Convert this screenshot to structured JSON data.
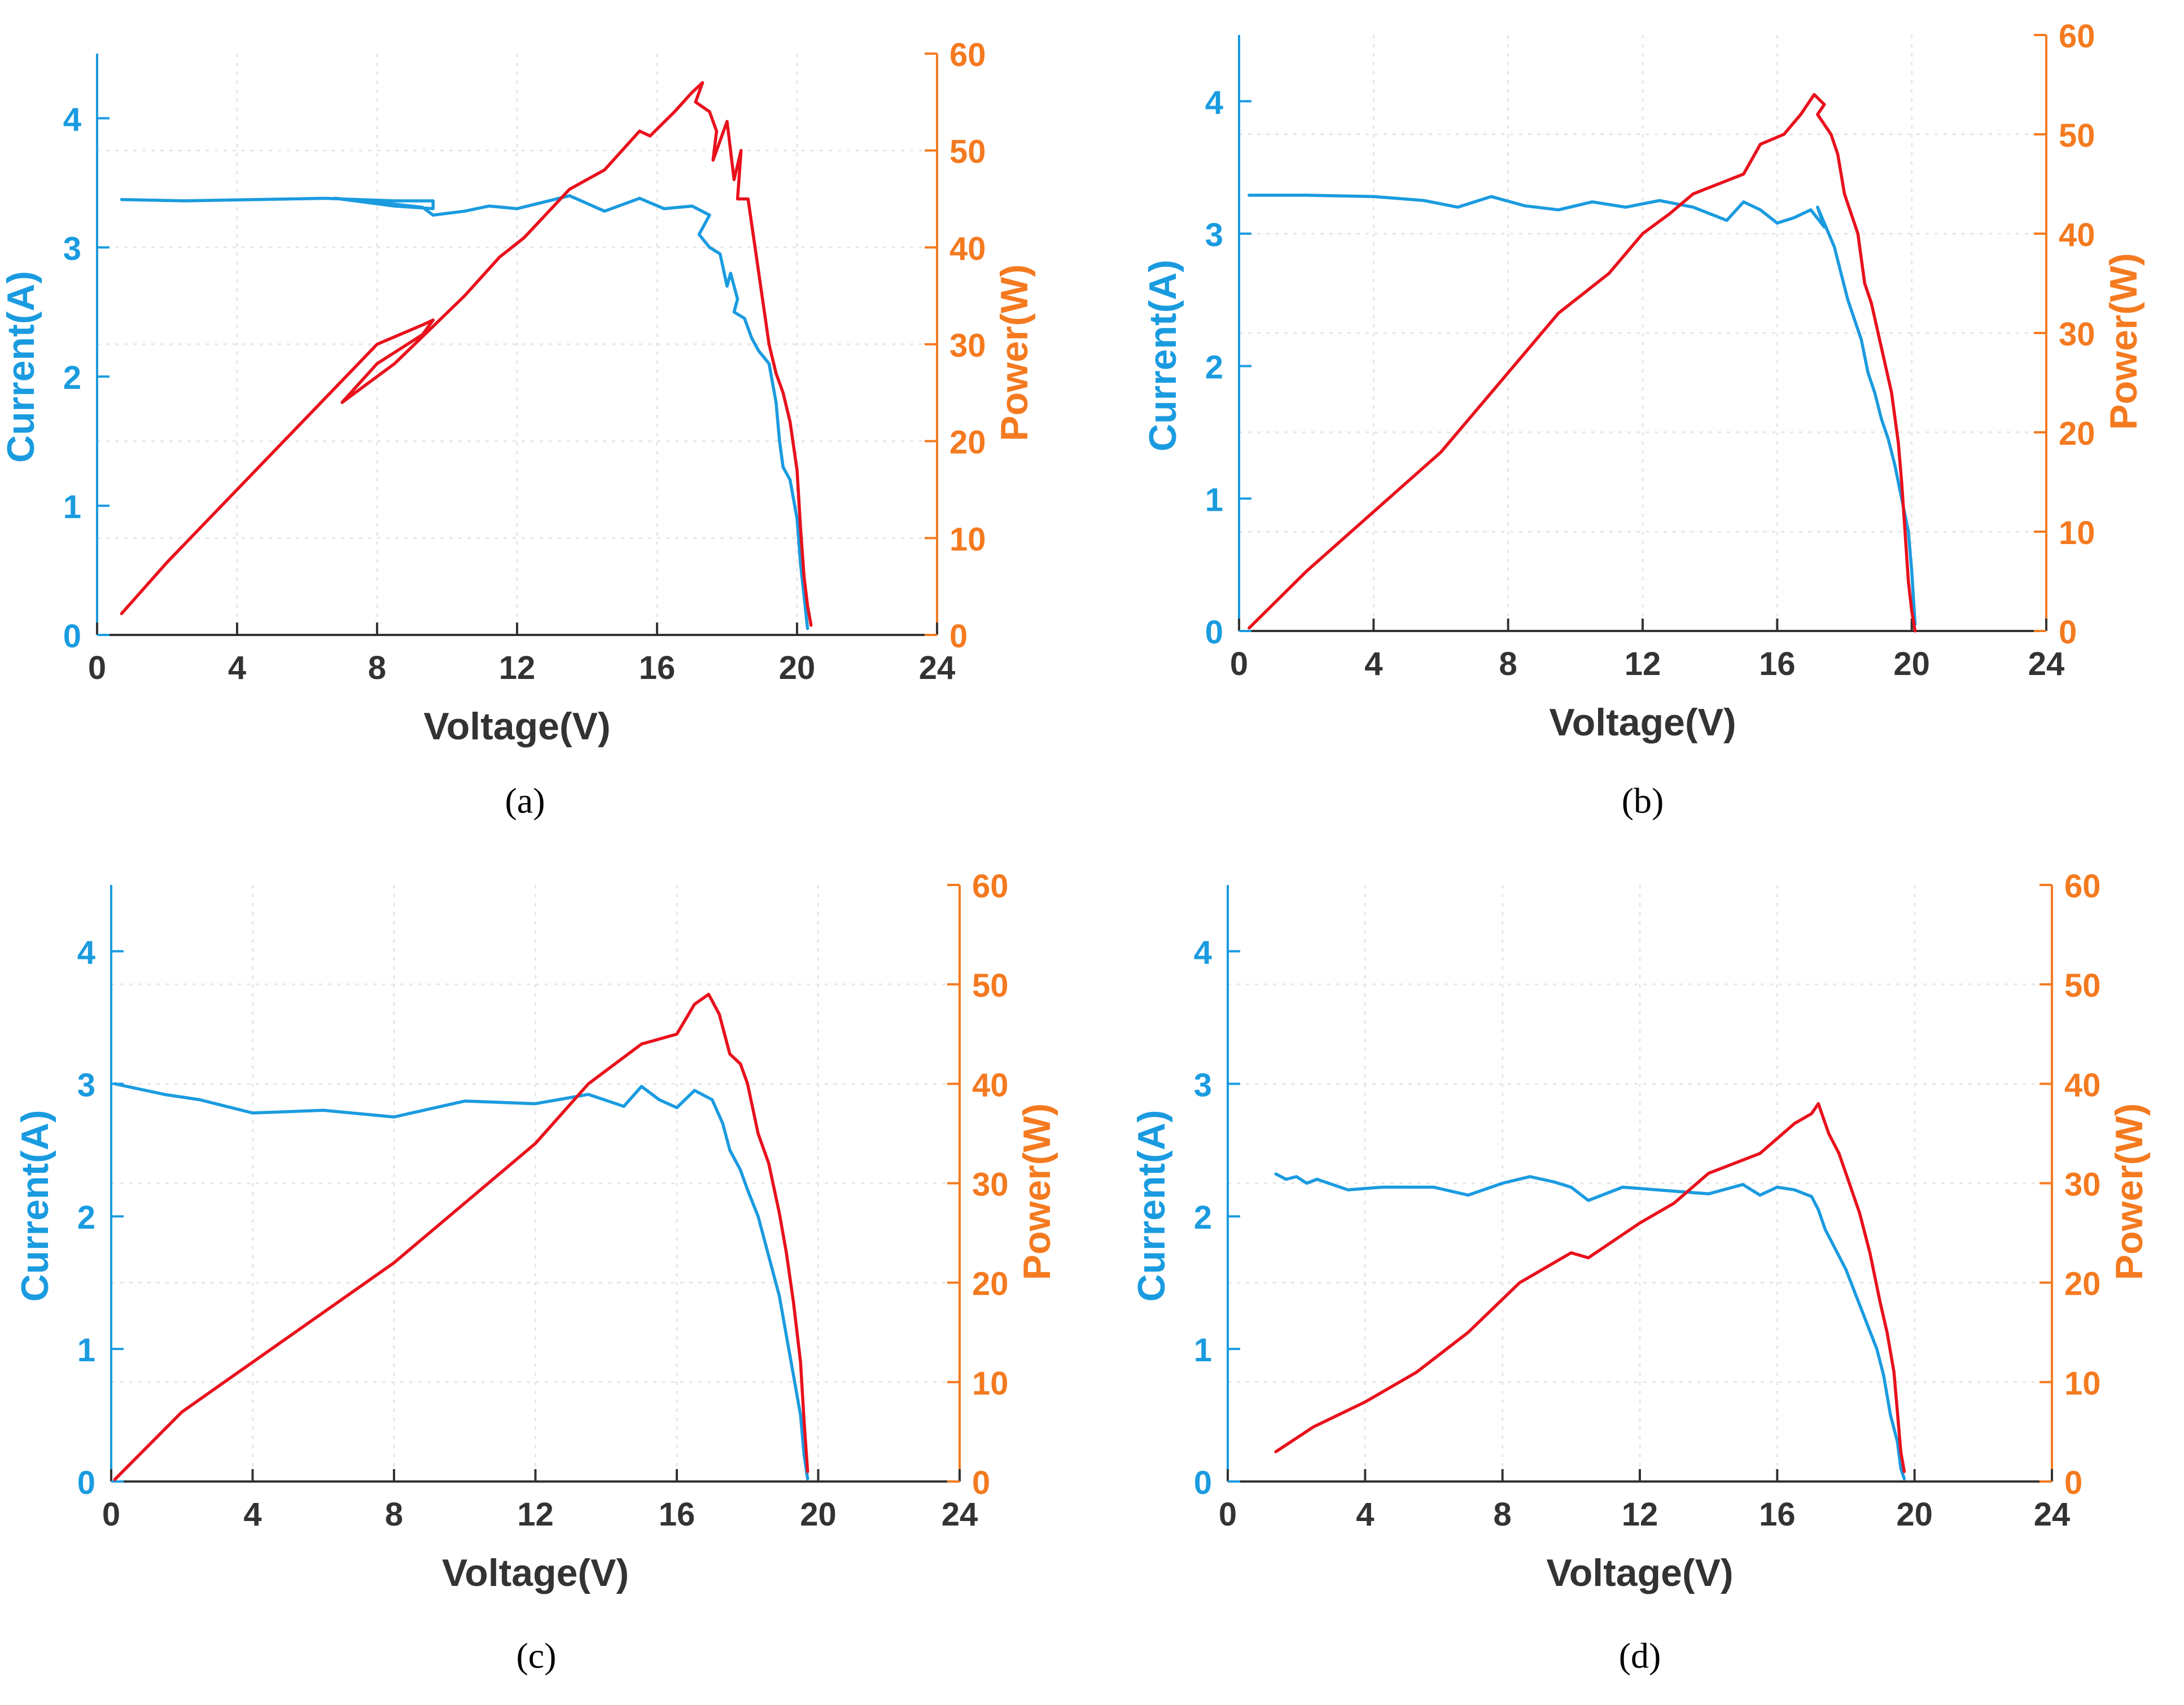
{
  "colors": {
    "current": "#1a9be0",
    "power_curve": "#e8111c",
    "power_axis": "#f47a20",
    "axis": "#333333",
    "grid": "#e6e6e6"
  },
  "chart_data": [
    {
      "type": "line",
      "caption": "(a)",
      "xlabel": "Voltage(V)",
      "ylabel_left": "Current(A)",
      "ylabel_right": "Power(W)",
      "xlim": [
        0,
        24
      ],
      "ylim_left": [
        0,
        4.5
      ],
      "ylim_right": [
        0,
        60
      ],
      "xticks": [
        "0",
        "4",
        "8",
        "12",
        "16",
        "20",
        "24"
      ],
      "yticks_left": [
        "0",
        "1",
        "2",
        "3",
        "4"
      ],
      "yticks_right": [
        "0",
        "10",
        "20",
        "30",
        "40",
        "50",
        "60"
      ],
      "series": [
        {
          "name": "Current",
          "axis": "left",
          "x": [
            0.7,
            2.5,
            4.5,
            6.5,
            8.5,
            9.6,
            9.6,
            8.5,
            6.8,
            8,
            9.3,
            9.6,
            10.5,
            11.2,
            12,
            13.5,
            14.5,
            15.5,
            16.2,
            17,
            17.5,
            17.2,
            17.5,
            17.8,
            18,
            18.1,
            18.3,
            18.2,
            18.5,
            18.7,
            18.9,
            19.2,
            19.4,
            19.5,
            19.6,
            19.8,
            20,
            20.1,
            20.2,
            20.3
          ],
          "y": [
            3.37,
            3.36,
            3.37,
            3.38,
            3.36,
            3.36,
            3.3,
            3.32,
            3.38,
            3.35,
            3.31,
            3.25,
            3.28,
            3.32,
            3.3,
            3.4,
            3.28,
            3.38,
            3.3,
            3.32,
            3.25,
            3.1,
            3.0,
            2.95,
            2.7,
            2.8,
            2.6,
            2.5,
            2.45,
            2.3,
            2.2,
            2.1,
            1.8,
            1.5,
            1.3,
            1.2,
            0.9,
            0.55,
            0.3,
            0.05
          ]
        },
        {
          "name": "Power",
          "axis": "right",
          "x": [
            0.7,
            2,
            4,
            6,
            8,
            9.3,
            9.6,
            9.3,
            8,
            7,
            8.5,
            9.5,
            10.5,
            11.5,
            12.2,
            13.5,
            14.5,
            15.5,
            15.8,
            16.5,
            17,
            17.3,
            17.1,
            17.5,
            17.7,
            17.6,
            18,
            18.2,
            18.4,
            18.3,
            18.6,
            18.8,
            19,
            19.2,
            19.4,
            19.6,
            19.8,
            20,
            20.1,
            20.2,
            20.3,
            20.4
          ],
          "y": [
            2.2,
            7.5,
            15,
            22.5,
            30,
            32,
            32.5,
            31,
            28,
            24,
            28,
            31.5,
            35,
            39,
            41,
            46,
            48,
            52,
            51.5,
            54,
            56,
            57,
            55,
            54,
            52,
            49,
            53,
            47,
            50,
            45,
            45,
            40,
            35,
            30,
            27,
            25,
            22,
            17,
            11,
            6,
            3,
            1
          ]
        }
      ]
    },
    {
      "type": "line",
      "caption": "(b)",
      "xlabel": "Voltage(V)",
      "ylabel_left": "Current(A)",
      "ylabel_right": "Power(W)",
      "xlim": [
        0,
        24
      ],
      "ylim_left": [
        0,
        4.5
      ],
      "ylim_right": [
        0,
        60
      ],
      "xticks": [
        "0",
        "4",
        "8",
        "12",
        "16",
        "20",
        "24"
      ],
      "yticks_left": [
        "0",
        "1",
        "2",
        "3",
        "4"
      ],
      "yticks_right": [
        "0",
        "10",
        "20",
        "30",
        "40",
        "50",
        "60"
      ],
      "series": [
        {
          "name": "Current",
          "axis": "left",
          "x": [
            0.3,
            2,
            4,
            5.5,
            6.5,
            7.5,
            8.5,
            9.5,
            10.5,
            11.5,
            12.5,
            13.5,
            14.5,
            15,
            15.5,
            16,
            16.5,
            17,
            17.4,
            17.2,
            17.7,
            17.9,
            18.1,
            18.3,
            18.5,
            18.7,
            18.9,
            19.1,
            19.3,
            19.5,
            19.7,
            19.9,
            20,
            20.1
          ],
          "y": [
            3.29,
            3.29,
            3.28,
            3.25,
            3.2,
            3.28,
            3.21,
            3.18,
            3.24,
            3.2,
            3.25,
            3.2,
            3.1,
            3.24,
            3.18,
            3.08,
            3.12,
            3.18,
            3.05,
            3.2,
            2.9,
            2.7,
            2.5,
            2.35,
            2.2,
            1.95,
            1.8,
            1.6,
            1.45,
            1.25,
            1.0,
            0.75,
            0.45,
            0.05
          ]
        },
        {
          "name": "Power",
          "axis": "right",
          "x": [
            0.3,
            2,
            4,
            6,
            8,
            9.5,
            11,
            12,
            12.8,
            13.5,
            15,
            15.5,
            16.2,
            16.7,
            17.1,
            17.4,
            17.2,
            17.6,
            17.8,
            18,
            18.2,
            18.4,
            18.6,
            18.8,
            19,
            19.2,
            19.4,
            19.6,
            19.7,
            19.8,
            19.9,
            20,
            20.1
          ],
          "y": [
            0.3,
            6,
            12,
            18,
            26,
            32,
            36,
            40,
            42,
            44,
            46,
            49,
            50,
            52,
            54,
            53,
            52,
            50,
            48,
            44,
            42,
            40,
            35,
            33,
            30,
            27,
            24,
            19,
            15,
            10,
            5,
            2,
            0
          ]
        }
      ]
    },
    {
      "type": "line",
      "caption": "(c)",
      "xlabel": "Voltage(V)",
      "ylabel_left": "Current(A)",
      "ylabel_right": "Power(W)",
      "xlim": [
        0,
        24
      ],
      "ylim_left": [
        0,
        4.5
      ],
      "ylim_right": [
        0,
        60
      ],
      "xticks": [
        "0",
        "4",
        "8",
        "12",
        "16",
        "20",
        "24"
      ],
      "yticks_left": [
        "0",
        "1",
        "2",
        "3",
        "4"
      ],
      "yticks_right": [
        "0",
        "10",
        "20",
        "30",
        "40",
        "50",
        "60"
      ],
      "series": [
        {
          "name": "Current",
          "axis": "left",
          "x": [
            0.1,
            1.5,
            2.5,
            4,
            6,
            8,
            10,
            12,
            13.5,
            14.5,
            15,
            15.5,
            16,
            16.5,
            17,
            17.3,
            17.5,
            17.8,
            18,
            18.3,
            18.6,
            18.9,
            19.1,
            19.3,
            19.5,
            19.6,
            19.7
          ],
          "y": [
            3.0,
            2.92,
            2.88,
            2.78,
            2.8,
            2.75,
            2.87,
            2.85,
            2.92,
            2.83,
            2.98,
            2.88,
            2.82,
            2.95,
            2.88,
            2.7,
            2.5,
            2.35,
            2.2,
            2.0,
            1.7,
            1.4,
            1.1,
            0.8,
            0.5,
            0.2,
            0.02
          ]
        },
        {
          "name": "Power",
          "axis": "right",
          "x": [
            0.1,
            2,
            4,
            6,
            8,
            10,
            12,
            13.5,
            15,
            16,
            16.5,
            16.9,
            17.2,
            17.5,
            17.8,
            18,
            18.3,
            18.6,
            18.9,
            19.1,
            19.3,
            19.5,
            19.6,
            19.7
          ],
          "y": [
            0.2,
            7,
            12,
            17,
            22,
            28,
            34,
            40,
            44,
            45,
            48,
            49,
            47,
            43,
            42,
            40,
            35,
            32,
            27,
            23,
            18,
            12,
            6,
            1
          ]
        }
      ]
    },
    {
      "type": "line",
      "caption": "(d)",
      "xlabel": "Voltage(V)",
      "ylabel_left": "Current(A)",
      "ylabel_right": "Power(W)",
      "xlim": [
        0,
        24
      ],
      "ylim_left": [
        0,
        4.5
      ],
      "ylim_right": [
        0,
        60
      ],
      "xticks": [
        "0",
        "4",
        "8",
        "12",
        "16",
        "20",
        "24"
      ],
      "yticks_left": [
        "0",
        "1",
        "2",
        "3",
        "4"
      ],
      "yticks_right": [
        "0",
        "10",
        "20",
        "30",
        "40",
        "50",
        "60"
      ],
      "series": [
        {
          "name": "Current",
          "axis": "left",
          "x": [
            1.4,
            1.7,
            2,
            2.3,
            2.6,
            3.5,
            4.5,
            6,
            7,
            8,
            8.8,
            9.5,
            10,
            10.5,
            11.5,
            12.5,
            14,
            15,
            15.5,
            16,
            16.5,
            17,
            17.2,
            17.4,
            17.7,
            18,
            18.3,
            18.6,
            18.9,
            19.1,
            19.3,
            19.5,
            19.6,
            19.7
          ],
          "y": [
            2.32,
            2.28,
            2.3,
            2.25,
            2.28,
            2.2,
            2.22,
            2.22,
            2.16,
            2.25,
            2.3,
            2.26,
            2.22,
            2.12,
            2.22,
            2.2,
            2.17,
            2.24,
            2.16,
            2.22,
            2.2,
            2.15,
            2.05,
            1.9,
            1.75,
            1.6,
            1.4,
            1.2,
            1.0,
            0.8,
            0.5,
            0.3,
            0.1,
            0.02
          ]
        },
        {
          "name": "Power",
          "axis": "right",
          "x": [
            1.4,
            2.5,
            4,
            5.5,
            7,
            8.5,
            10,
            10.5,
            12,
            13,
            14,
            15.5,
            16.5,
            17,
            17.2,
            17.5,
            17.8,
            18.1,
            18.4,
            18.7,
            19,
            19.2,
            19.4,
            19.5,
            19.6,
            19.7
          ],
          "y": [
            3,
            5.5,
            8,
            11,
            15,
            20,
            23,
            22.5,
            26,
            28,
            31,
            33,
            36,
            37,
            38,
            35,
            33,
            30,
            27,
            23,
            18,
            15,
            11,
            7,
            3,
            1
          ]
        }
      ]
    }
  ]
}
